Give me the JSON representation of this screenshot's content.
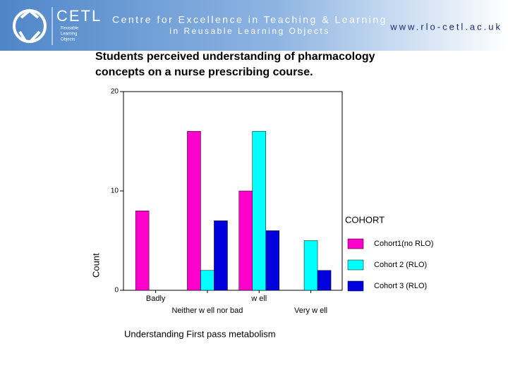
{
  "header": {
    "logo_title": "CETL",
    "logo_subtitle": [
      "Reusable",
      "Learning",
      "Objects"
    ],
    "title": "Centre for Excellence in Teaching & Learning",
    "subtitle": "in Reusable Learning Objects",
    "url": "www.rlo-cetl.ac.uk"
  },
  "slide_title": [
    "Students perceived understanding of pharmacology",
    "concepts on a nurse prescribing course."
  ],
  "chart_data": {
    "type": "bar",
    "categories": [
      "Badly",
      "Neither w ell nor bad",
      "w ell",
      "Very w ell"
    ],
    "series": [
      {
        "name": "Cohort1(no RLO)",
        "color": "#ff00cc",
        "values": [
          8,
          16,
          10,
          0
        ]
      },
      {
        "name": "Cohort 2 (RLO)",
        "color": "#00ffff",
        "values": [
          0,
          2,
          16,
          5
        ]
      },
      {
        "name": "Cohort 3 (RLO)",
        "color": "#0000dd",
        "values": [
          0,
          7,
          6,
          2
        ]
      }
    ],
    "ylim": [
      0,
      20
    ],
    "yticks": [
      0,
      10,
      20
    ],
    "grid": false,
    "xlabel": "Understanding First pass metabolism",
    "ylabel": "Count",
    "legend_title": "COHORT",
    "legend": "right"
  }
}
